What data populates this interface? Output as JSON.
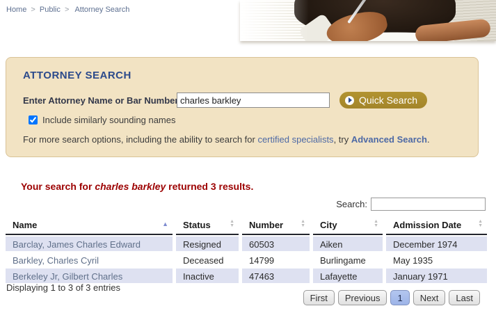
{
  "breadcrumb": {
    "items": [
      "Home",
      "Public",
      "Attorney Search"
    ],
    "separator": ">"
  },
  "search_panel": {
    "title": "ATTORNEY SEARCH",
    "name_label": "Enter Attorney Name or Bar Number",
    "search_value": "charles barkley",
    "quick_search_label": "Quick Search",
    "checkbox_label": "Include similarly sounding names",
    "checkbox_checked": "checked",
    "info_prefix": "For more search options, including the ability to search for ",
    "info_link_specialists": "certified specialists",
    "info_middle": ", try ",
    "info_link_advanced": "Advanced Search",
    "info_suffix": "."
  },
  "results": {
    "message_prefix": "Your search for ",
    "query": "charles barkley",
    "message_suffix": " returned 3 results."
  },
  "table": {
    "filter_label": "Search:",
    "filter_value": "",
    "columns": [
      "Name",
      "Status",
      "Number",
      "City",
      "Admission Date"
    ],
    "rows": [
      {
        "name": "Barclay, James Charles Edward",
        "status": "Resigned",
        "number": "60503",
        "city": "Aiken",
        "admission_date": "December 1974"
      },
      {
        "name": "Barkley, Charles Cyril",
        "status": "Deceased",
        "number": "14799",
        "city": "Burlingame",
        "admission_date": "May 1935"
      },
      {
        "name": "Berkeley Jr, Gilbert Charles",
        "status": "Inactive",
        "number": "47463",
        "city": "Lafayette",
        "admission_date": "January 1971"
      }
    ],
    "info": "Displaying 1 to 3 of 3 entries",
    "pagination": [
      "First",
      "Previous",
      "1",
      "Next",
      "Last"
    ],
    "active_page": "1"
  },
  "colors": {
    "panel_bg": "#f2e3c3",
    "panel_border": "#d9c296",
    "heading_navy": "#2b4a8b",
    "gold_button": "#a98b2c",
    "result_red": "#9c0000",
    "link_blue": "#4d69a5",
    "name_link": "#60708a",
    "row_stripe": "#dee1f1",
    "active_page_bg": "#9db4e8"
  }
}
